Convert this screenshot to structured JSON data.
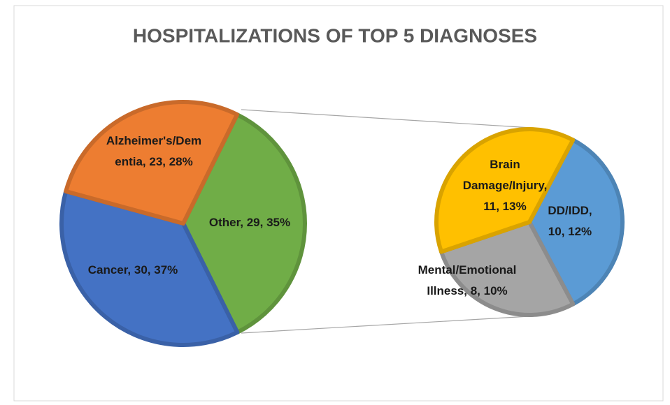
{
  "chart_data": [
    {
      "type": "pie",
      "title": "HOSPITALIZATIONS OF TOP 5 DIAGNOSES",
      "categories": [
        "Other",
        "Cancer",
        "Alzheimer's/Dementia"
      ],
      "values": [
        29,
        30,
        23
      ],
      "value_labels": [
        [
          "Other, 29, 35%"
        ],
        [
          "Cancer, 30, 37%"
        ],
        [
          "Alzheimer's/Dem",
          "entia, 23, 28%"
        ]
      ],
      "colors": [
        "#70ad47",
        "#4472c4",
        "#ed7d31"
      ]
    },
    {
      "type": "pie",
      "categories": [
        "DD/IDD",
        "Mental/Emotional Illness",
        "Brain Damage/Injury"
      ],
      "values": [
        10,
        8,
        11
      ],
      "value_labels": [
        [
          "DD/IDD,",
          "10, 12%"
        ],
        [
          "Mental/Emotional",
          "Illness, 8, 10%"
        ],
        [
          "Brain",
          "Damage/Injury,",
          "11, 13%"
        ]
      ],
      "colors": [
        "#5b9bd5",
        "#a5a5a5",
        "#ffc000"
      ]
    }
  ]
}
